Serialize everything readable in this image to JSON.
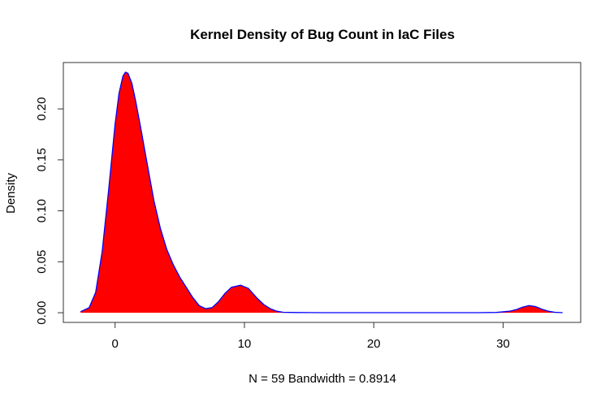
{
  "chart_data": {
    "type": "area",
    "title": "Kernel Density of Bug Count in IaC Files",
    "xlabel": "N = 59   Bandwidth = 0.8914",
    "ylabel": "Density",
    "xlim": [
      -4.0,
      36.0
    ],
    "ylim": [
      -0.0095,
      0.2455
    ],
    "xticks": [
      0,
      10,
      20,
      30
    ],
    "yticks": [
      0.0,
      0.05,
      0.1,
      0.15,
      0.2
    ],
    "ytick_labels": [
      "0.00",
      "0.05",
      "0.10",
      "0.15",
      "0.20"
    ],
    "fill_color": "#ff0000",
    "line_color": "#0000ff",
    "grid": false,
    "series": [
      {
        "x": [
          -2.67,
          -2.0,
          -1.5,
          -1.0,
          -0.5,
          0.0,
          0.3,
          0.6,
          0.8,
          1.0,
          1.3,
          1.6,
          2.0,
          2.5,
          3.0,
          3.5,
          4.0,
          4.5,
          5.0,
          5.5,
          6.0,
          6.5,
          7.0,
          7.5,
          8.0,
          8.5,
          9.0,
          9.7,
          10.3,
          11.0,
          11.5,
          12.0,
          12.5,
          13.0,
          14.0,
          16.0,
          20.0,
          24.0,
          28.0,
          29.5,
          30.5,
          31.0,
          31.5,
          32.0,
          32.5,
          33.0,
          33.5,
          34.0,
          34.6
        ],
        "y": [
          0.001,
          0.005,
          0.02,
          0.06,
          0.12,
          0.185,
          0.215,
          0.232,
          0.236,
          0.235,
          0.225,
          0.207,
          0.18,
          0.145,
          0.11,
          0.083,
          0.062,
          0.047,
          0.035,
          0.025,
          0.015,
          0.007,
          0.004,
          0.005,
          0.011,
          0.019,
          0.025,
          0.027,
          0.024,
          0.014,
          0.008,
          0.004,
          0.0015,
          0.0005,
          0.0002,
          0.0001,
          0.0001,
          0.0001,
          0.0001,
          0.0003,
          0.0015,
          0.003,
          0.0055,
          0.007,
          0.006,
          0.0035,
          0.0015,
          0.0005,
          0.0001
        ]
      }
    ]
  }
}
